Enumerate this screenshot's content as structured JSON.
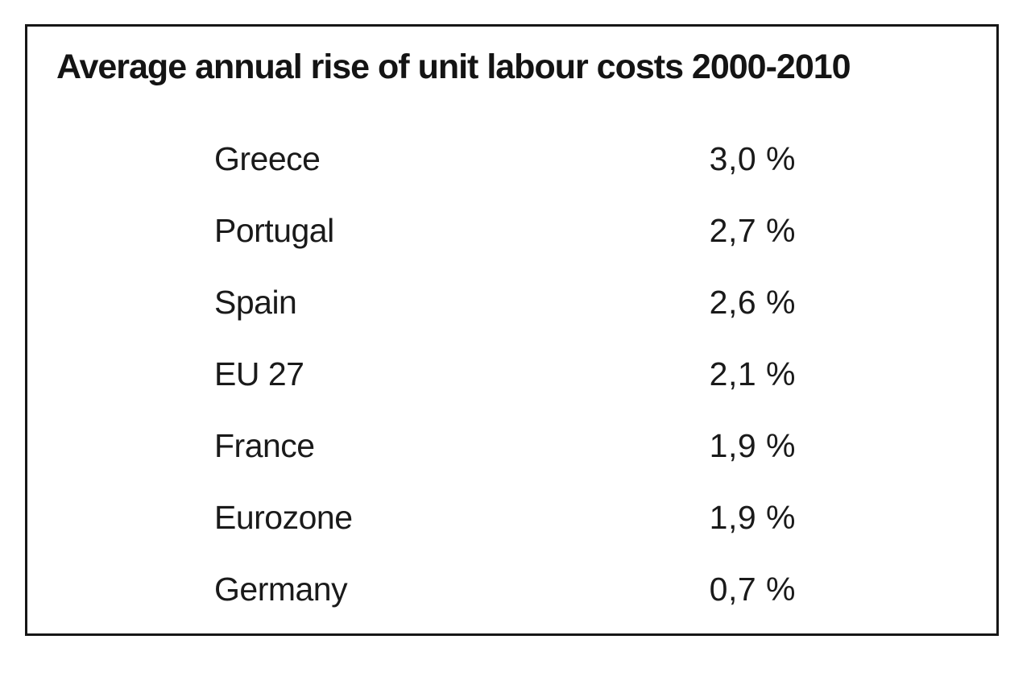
{
  "table": {
    "title": "Average annual rise of unit labour costs 2000-2010",
    "rows": [
      {
        "label": "Greece",
        "value": "3,0 %"
      },
      {
        "label": "Portugal",
        "value": "2,7 %"
      },
      {
        "label": "Spain",
        "value": "2,6 %"
      },
      {
        "label": "EU 27",
        "value": "2,1 %"
      },
      {
        "label": "France",
        "value": "1,9 %"
      },
      {
        "label": "Eurozone",
        "value": "1,9 %"
      },
      {
        "label": "Germany",
        "value": "0,7 %"
      }
    ]
  },
  "colors": {
    "border": "#161616",
    "text": "#1a1a1a",
    "background": "#ffffff"
  },
  "chart_data": {
    "type": "table",
    "title": "Average annual rise of unit labour costs 2000-2010",
    "categories": [
      "Greece",
      "Portugal",
      "Spain",
      "EU 27",
      "France",
      "Eurozone",
      "Germany"
    ],
    "values": [
      3.0,
      2.7,
      2.6,
      2.1,
      1.9,
      1.9,
      0.7
    ],
    "value_labels": [
      "3,0 %",
      "2,7 %",
      "2,6 %",
      "2,1 %",
      "1,9 %",
      "1,9 %",
      "0,7 %"
    ],
    "unit": "percent",
    "notes": "Decimal comma formatting; values listed descending; plain bordered table, no axes or gridlines"
  }
}
